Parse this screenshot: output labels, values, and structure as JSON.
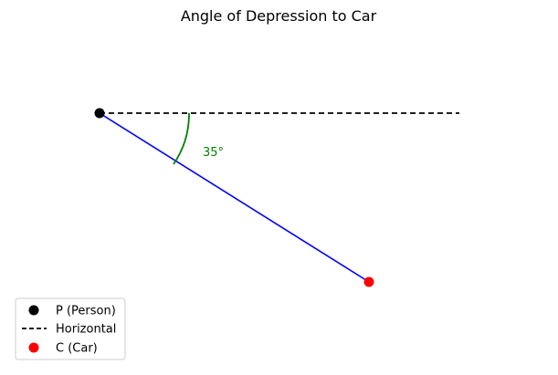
{
  "title": "Angle of Depression to Car",
  "angle_label": "35°",
  "points": {
    "person": {
      "color": "#000000"
    },
    "car": {
      "color": "#ff0000"
    }
  },
  "lines": {
    "horizontal": {
      "color": "#000000",
      "style": "dashed"
    },
    "line_of_sight": {
      "color": "#0000ff",
      "style": "solid"
    },
    "angle_arc": {
      "color": "#008000"
    }
  },
  "legend": {
    "placement": "lower-left",
    "items": [
      {
        "label": "P (Person)",
        "marker": "dot",
        "color": "#000000"
      },
      {
        "label": "Horizontal",
        "marker": "dashed-line",
        "color": "#000000"
      },
      {
        "label": "C (Car)",
        "marker": "dot",
        "color": "#ff0000"
      }
    ]
  }
}
